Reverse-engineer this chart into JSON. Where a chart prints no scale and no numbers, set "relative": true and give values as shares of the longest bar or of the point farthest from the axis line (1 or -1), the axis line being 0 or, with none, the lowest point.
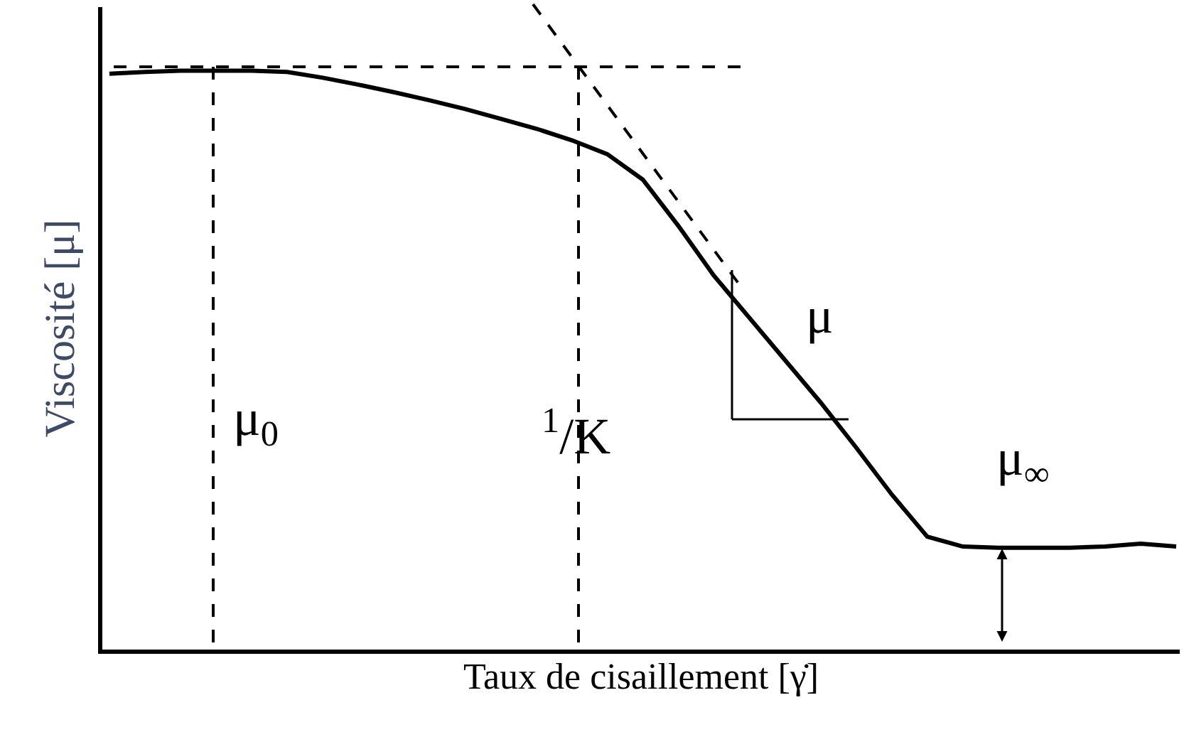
{
  "chart_data": {
    "type": "line",
    "relative": true,
    "xlabel": "Taux de cisaillement [γ̇]",
    "ylabel": "Viscosité [μ]",
    "line_style": "solid",
    "categories": [
      null,
      null,
      null,
      null,
      null,
      null,
      null,
      null,
      null,
      null,
      null,
      null,
      null,
      null,
      null,
      null,
      null,
      null,
      null,
      null,
      null,
      null,
      null,
      null,
      null,
      null,
      null,
      null,
      null,
      null,
      null
    ],
    "series": [
      {
        "color": "#000000",
        "values": [
          0.995,
          0.998,
          1.0,
          1.0,
          1.0,
          0.998,
          0.988,
          0.976,
          0.963,
          0.949,
          0.934,
          0.917,
          0.9,
          0.88,
          0.856,
          0.812,
          0.732,
          0.646,
          0.573,
          0.5,
          0.427,
          0.349,
          0.268,
          0.195,
          0.178,
          0.176,
          0.176,
          0.176,
          0.178,
          0.183,
          0.178
        ]
      }
    ],
    "annotations": [
      "μ$_{0}$",
      "$^{1}$/K",
      "μ",
      "μ$_{∞}$"
    ]
  }
}
